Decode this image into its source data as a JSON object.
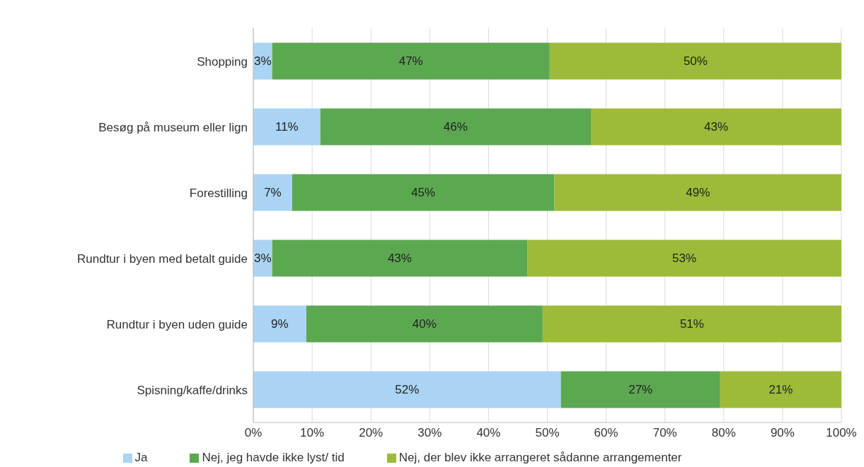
{
  "chart_data": {
    "type": "bar",
    "orientation": "horizontal",
    "stacked": true,
    "categories": [
      "Shopping",
      "Besøg på museum eller lign",
      "Forestilling",
      "Rundtur i byen med betalt guide",
      "Rundtur i byen uden guide",
      "Spisning/kaffe/drinks"
    ],
    "series": [
      {
        "name": "Ja",
        "color": "#a9d4f4",
        "values": [
          3.2,
          11.4,
          6.6,
          3.2,
          9.0,
          52.3
        ],
        "value_labels": [
          "3%",
          "11%",
          "7%",
          "3%",
          "9%",
          "52%"
        ]
      },
      {
        "name": "Nej, jeg havde ikke lyst/ tid",
        "color": "#5ca851",
        "values": [
          47.2,
          46.0,
          44.6,
          43.4,
          40.2,
          27.1
        ],
        "value_labels": [
          "47%",
          "46%",
          "45%",
          "43%",
          "40%",
          "27%"
        ]
      },
      {
        "name": "Nej, der blev ikke arrangeret sådanne arrangementer",
        "color": "#9dbb38",
        "values": [
          49.6,
          42.6,
          48.8,
          53.4,
          50.8,
          20.6
        ],
        "value_labels": [
          "50%",
          "43%",
          "49%",
          "53%",
          "51%",
          "21%"
        ]
      }
    ],
    "xlim": [
      0,
      100
    ],
    "xticks": [
      {
        "value": 0,
        "label": "0%"
      },
      {
        "value": 10,
        "label": "10%"
      },
      {
        "value": 20,
        "label": "20%"
      },
      {
        "value": 30,
        "label": "30%"
      },
      {
        "value": 40,
        "label": "40%"
      },
      {
        "value": 50,
        "label": "50%"
      },
      {
        "value": 60,
        "label": "60%"
      },
      {
        "value": 70,
        "label": "70%"
      },
      {
        "value": 80,
        "label": "80%"
      },
      {
        "value": 90,
        "label": "90%"
      },
      {
        "value": 100,
        "label": "100%"
      }
    ],
    "grid": "x",
    "legend": "bottom"
  }
}
